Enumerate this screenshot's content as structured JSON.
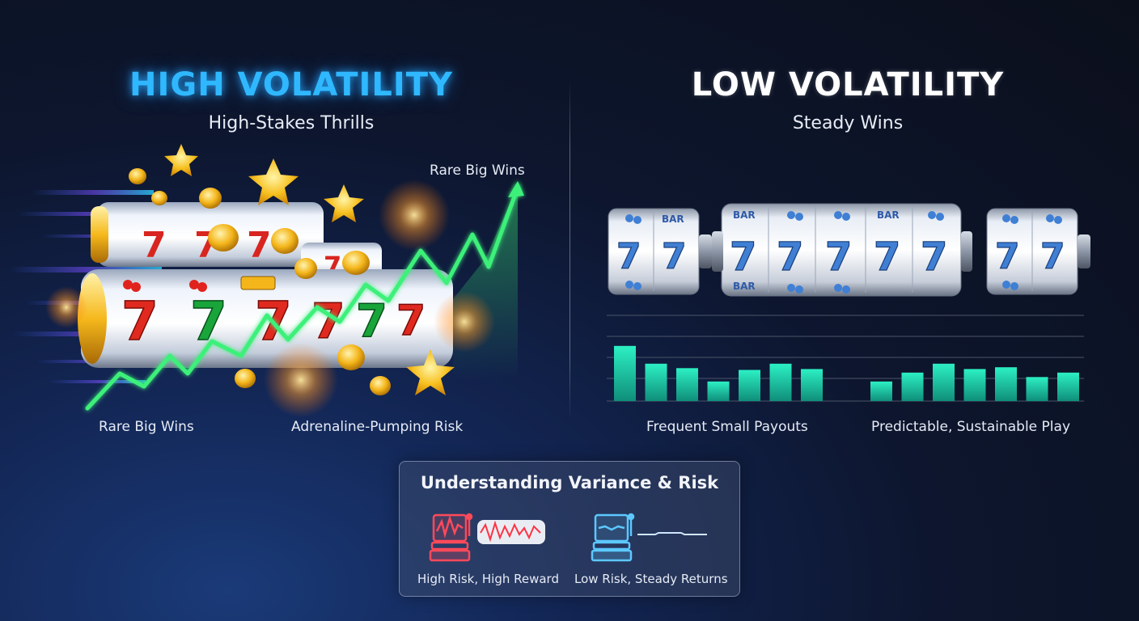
{
  "high": {
    "title": "HIGH VOLATILITY",
    "subtitle": "High-Stakes Thrills",
    "curve_label": "Rare Big Wins",
    "bottom_left_label": "Rare Big Wins",
    "bottom_right_label": "Adrenaline-Pumping Risk"
  },
  "low": {
    "title": "LOW VOLATILITY",
    "subtitle": "Steady Wins",
    "label_left": "Frequent Small Payouts",
    "label_right": "Predictable, Sustainable Play",
    "bars_left": [
      0.62,
      0.42,
      0.37,
      0.22,
      0.35,
      0.42,
      0.36
    ],
    "bars_right": [
      0.22,
      0.32,
      0.42,
      0.36,
      0.38,
      0.27,
      0.32
    ]
  },
  "reel_symbols": {
    "seven": "7",
    "bar": "BAR"
  },
  "panel": {
    "title": "Understanding Variance & Risk",
    "left_label": "High Risk, High Reward",
    "right_label": "Low Risk, Steady Returns"
  },
  "colors": {
    "high_accent": "#2fb8ff",
    "trend_green": "#3cf07a",
    "bar_teal": "#1fe0b4",
    "risk_red": "#ff4a5a",
    "steady_blue": "#5cc8ff"
  },
  "icons": [
    "slot-reel-icon",
    "star-icon",
    "coin-icon",
    "firework-icon",
    "cherry-icon",
    "slot-machine-icon",
    "waveform-icon"
  ]
}
